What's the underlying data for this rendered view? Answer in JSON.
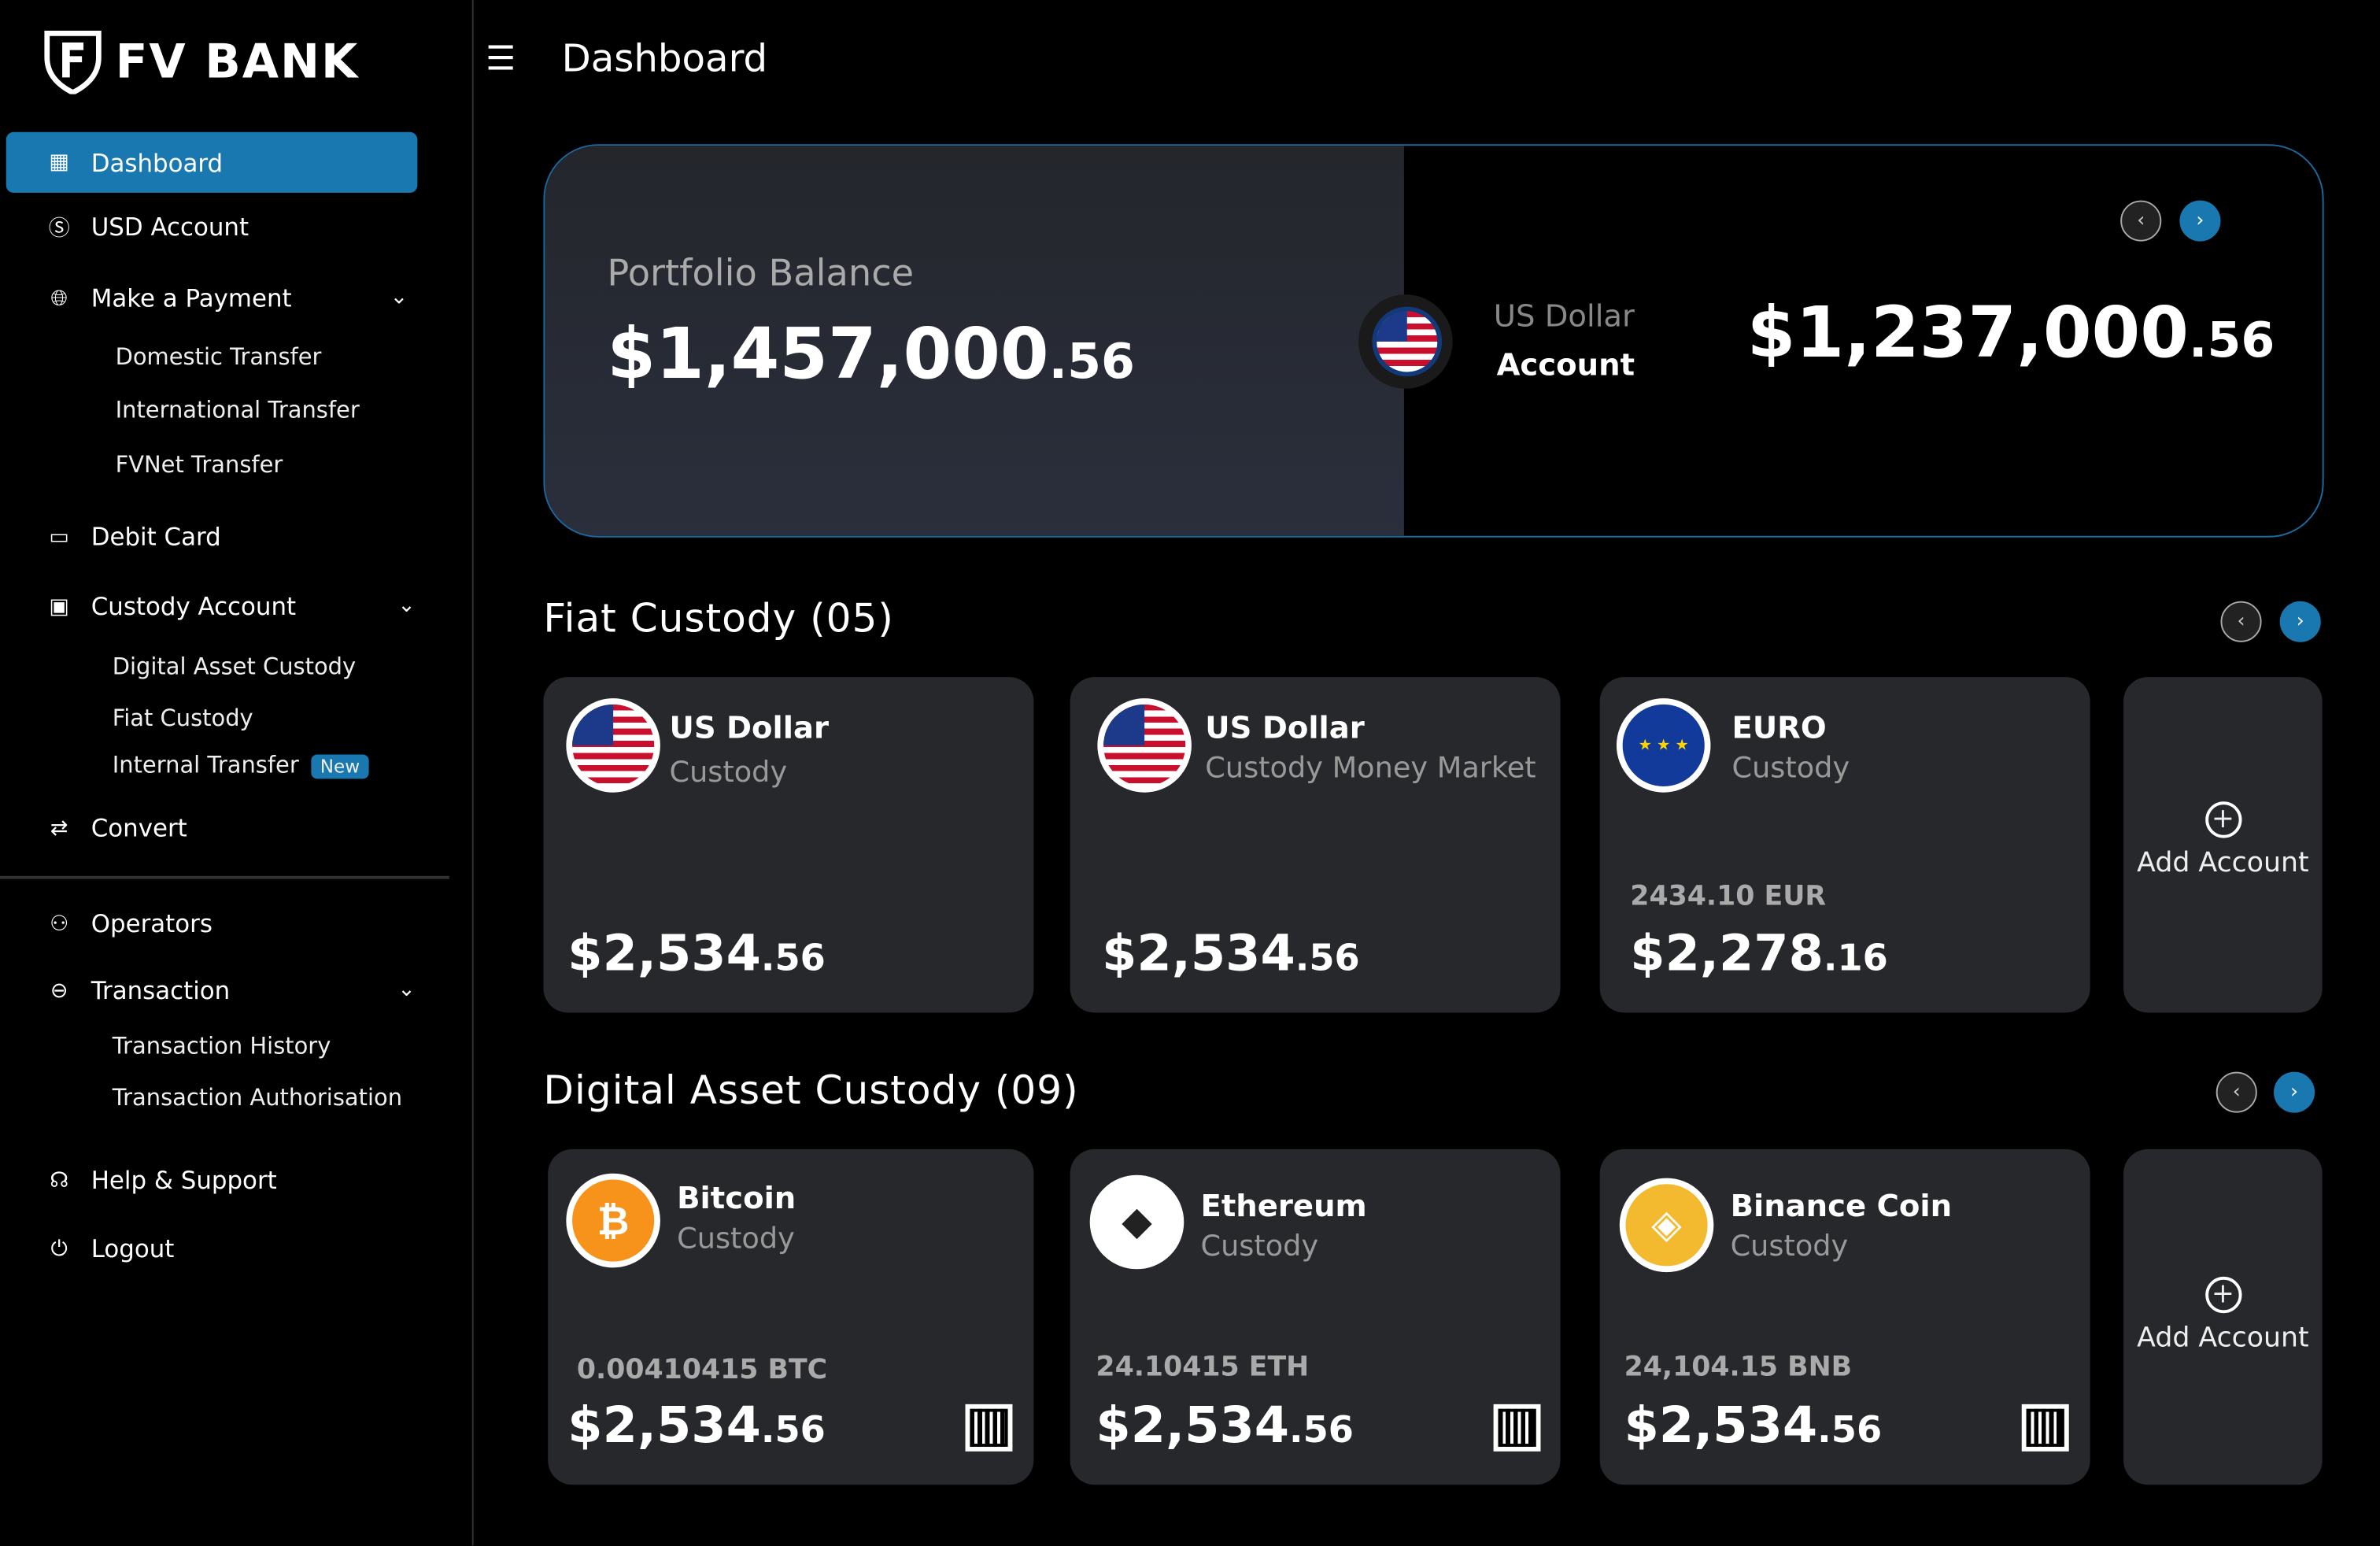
{
  "brand": {
    "name": "FV BANK"
  },
  "header": {
    "title": "Dashboard"
  },
  "sidebar": {
    "items": [
      {
        "label": "Dashboard",
        "icon": "grid-icon"
      },
      {
        "label": "USD Account",
        "icon": "dollar-icon"
      },
      {
        "label": "Make a Payment",
        "icon": "payment-globe-icon",
        "sub": [
          "Domestic Transfer",
          "International Transfer",
          "FVNet Transfer"
        ]
      },
      {
        "label": "Debit Card",
        "icon": "card-icon"
      },
      {
        "label": "Custody Account",
        "icon": "vault-icon",
        "sub": [
          "Digital Asset Custody",
          "Fiat Custody",
          "Internal Transfer"
        ]
      },
      {
        "label": "Convert",
        "icon": "convert-icon"
      },
      {
        "label": "Operators",
        "icon": "user-icon"
      },
      {
        "label": "Transaction",
        "icon": "transaction-icon",
        "sub": [
          "Transaction History",
          "Transaction Authorisation"
        ]
      },
      {
        "label": "Help & Support",
        "icon": "headset-icon"
      },
      {
        "label": "Logout",
        "icon": "power-icon"
      }
    ],
    "new_badge": "New"
  },
  "portfolio": {
    "label": "Portfolio Balance",
    "amount": "$1,457,000",
    "cents": ".56",
    "account_line1": "US Dollar",
    "account_line2": "Account",
    "account_amount": "$1,237,000",
    "account_cents": ".56"
  },
  "fiat": {
    "title": "Fiat Custody (05)",
    "cards": [
      {
        "title": "US Dollar",
        "subtitle": "Custody",
        "amount": "$2,534",
        "cents": ".56"
      },
      {
        "title": "US Dollar",
        "subtitle": "Custody Money Market",
        "amount": "$2,534",
        "cents": ".56"
      },
      {
        "title": "EURO",
        "subtitle": "Custody",
        "qty": "2434.10 EUR",
        "amount": "$2,278",
        "cents": ".16"
      }
    ],
    "add": "Add Account"
  },
  "digital": {
    "title": "Digital Asset Custody (09)",
    "cards": [
      {
        "title": "Bitcoin",
        "subtitle": "Custody",
        "qty": "0.00410415 BTC",
        "amount": "$2,534",
        "cents": ".56"
      },
      {
        "title": "Ethereum",
        "subtitle": "Custody",
        "qty": "24.10415 ETH",
        "amount": "$2,534",
        "cents": ".56"
      },
      {
        "title": "Binance Coin",
        "subtitle": "Custody",
        "qty": "24,104.15 BNB",
        "amount": "$2,534",
        "cents": ".56"
      }
    ],
    "add": "Add Account"
  },
  "colors": {
    "accent": "#1a78b0",
    "card": "#27282c",
    "portfolio_left": "#262a33"
  }
}
